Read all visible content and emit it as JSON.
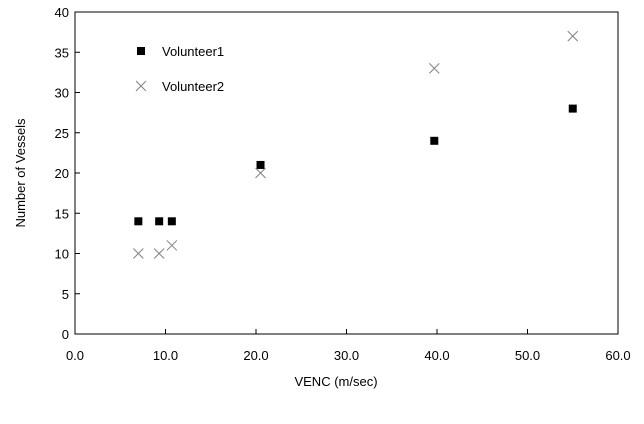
{
  "chart_data": {
    "type": "scatter",
    "xlabel": "VENC (m/sec)",
    "ylabel": "Number of Vessels",
    "xlim": [
      0,
      60
    ],
    "ylim": [
      0,
      40
    ],
    "x_ticks": [
      0,
      10,
      20,
      30,
      40,
      50,
      60
    ],
    "x_tick_labels": [
      "0.0",
      "10.0",
      "20.0",
      "30.0",
      "40.0",
      "50.0",
      "60.0"
    ],
    "y_ticks": [
      0,
      5,
      10,
      15,
      20,
      25,
      30,
      35,
      40
    ],
    "y_tick_labels": [
      "0",
      "5",
      "10",
      "15",
      "20",
      "25",
      "30",
      "35",
      "40"
    ],
    "grid": false,
    "legend_position": "top-left",
    "series": [
      {
        "name": "Volunteer1",
        "marker": "square",
        "color": "#000000",
        "x": [
          7.0,
          9.3,
          10.7,
          20.5,
          39.7,
          55.0
        ],
        "y": [
          14,
          14,
          14,
          21,
          24,
          28
        ]
      },
      {
        "name": "Volunteer2",
        "marker": "x",
        "color": "#808080",
        "x": [
          7.0,
          9.3,
          10.7,
          20.5,
          39.7,
          55.0
        ],
        "y": [
          10,
          10,
          11,
          20,
          33,
          37
        ]
      }
    ]
  }
}
